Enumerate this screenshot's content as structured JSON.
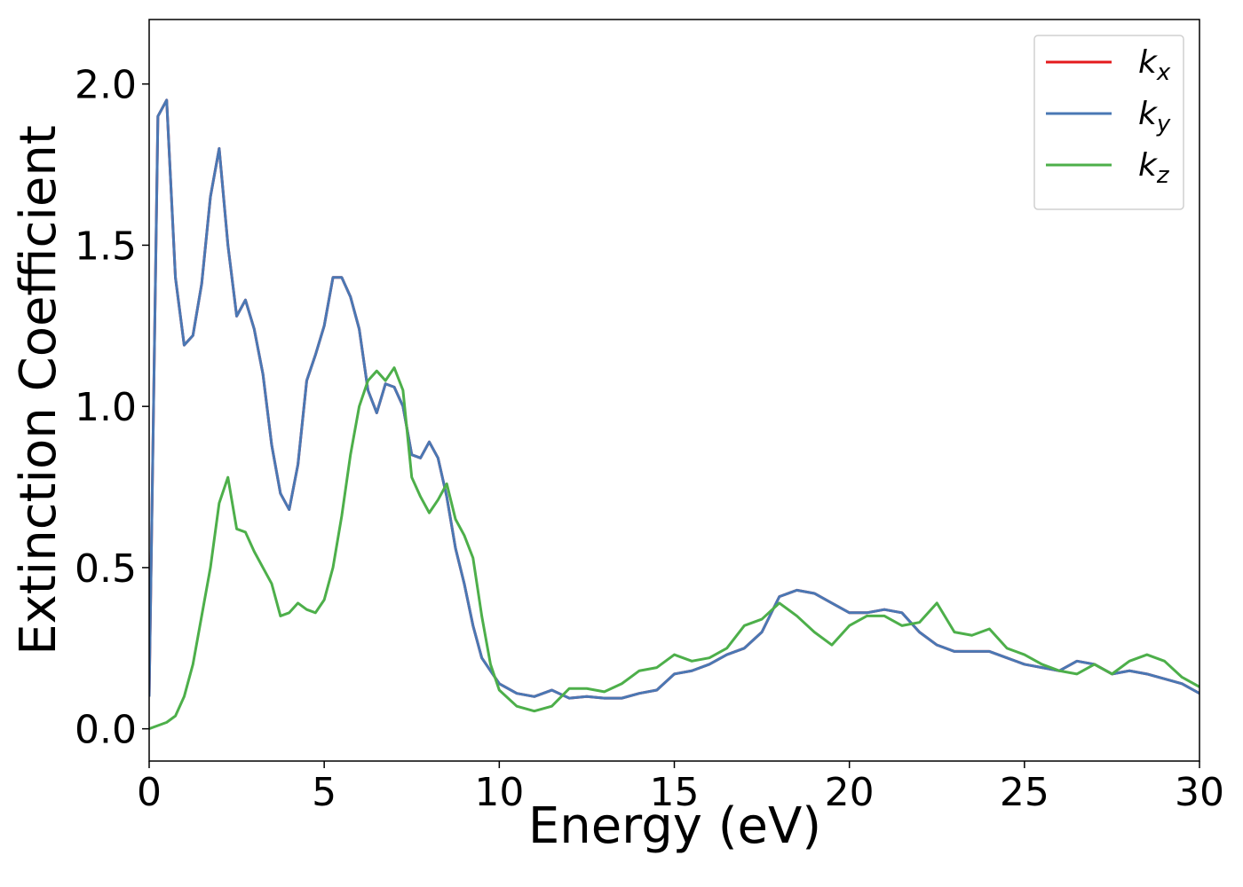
{
  "chart_data": {
    "type": "line",
    "xlabel": "Energy (eV)",
    "ylabel": "Extinction Coefficient",
    "x": [
      0,
      0.25,
      0.5,
      0.75,
      1,
      1.25,
      1.5,
      1.75,
      2,
      2.25,
      2.5,
      2.75,
      3,
      3.25,
      3.5,
      3.75,
      4,
      4.25,
      4.5,
      4.75,
      5,
      5.25,
      5.5,
      5.75,
      6,
      6.25,
      6.5,
      6.75,
      7,
      7.25,
      7.5,
      7.75,
      8,
      8.25,
      8.5,
      8.75,
      9,
      9.25,
      9.5,
      9.75,
      10,
      10.5,
      11,
      11.5,
      12,
      12.5,
      13,
      13.5,
      14,
      14.5,
      15,
      15.5,
      16,
      16.5,
      17,
      17.5,
      18,
      18.5,
      19,
      19.5,
      20,
      20.5,
      21,
      21.5,
      22,
      22.5,
      23,
      23.5,
      24,
      24.5,
      25,
      25.5,
      26,
      26.5,
      27,
      27.5,
      28,
      28.5,
      29,
      29.5,
      30
    ],
    "series": [
      {
        "name": "kx",
        "color": "#e41a1c",
        "values": [
          0.1,
          1.9,
          1.95,
          1.4,
          1.19,
          1.22,
          1.38,
          1.65,
          1.8,
          1.5,
          1.28,
          1.33,
          1.24,
          1.1,
          0.88,
          0.73,
          0.68,
          0.82,
          1.08,
          1.16,
          1.25,
          1.4,
          1.4,
          1.34,
          1.24,
          1.05,
          0.98,
          1.07,
          1.06,
          1.0,
          0.85,
          0.84,
          0.89,
          0.84,
          0.72,
          0.56,
          0.45,
          0.32,
          0.22,
          0.18,
          0.14,
          0.11,
          0.1,
          0.12,
          0.095,
          0.1,
          0.095,
          0.095,
          0.11,
          0.12,
          0.17,
          0.18,
          0.2,
          0.23,
          0.25,
          0.3,
          0.41,
          0.43,
          0.42,
          0.39,
          0.36,
          0.36,
          0.37,
          0.36,
          0.3,
          0.26,
          0.24,
          0.24,
          0.24,
          0.22,
          0.2,
          0.19,
          0.18,
          0.21,
          0.2,
          0.17,
          0.18,
          0.17,
          0.155,
          0.14,
          0.11
        ]
      },
      {
        "name": "ky",
        "color": "#4a78b4",
        "values": [
          0.1,
          1.9,
          1.95,
          1.4,
          1.19,
          1.22,
          1.38,
          1.65,
          1.8,
          1.5,
          1.28,
          1.33,
          1.24,
          1.1,
          0.88,
          0.73,
          0.68,
          0.82,
          1.08,
          1.16,
          1.25,
          1.4,
          1.4,
          1.34,
          1.24,
          1.05,
          0.98,
          1.07,
          1.06,
          1.0,
          0.85,
          0.84,
          0.89,
          0.84,
          0.72,
          0.56,
          0.45,
          0.32,
          0.22,
          0.18,
          0.14,
          0.11,
          0.1,
          0.12,
          0.095,
          0.1,
          0.095,
          0.095,
          0.11,
          0.12,
          0.17,
          0.18,
          0.2,
          0.23,
          0.25,
          0.3,
          0.41,
          0.43,
          0.42,
          0.39,
          0.36,
          0.36,
          0.37,
          0.36,
          0.3,
          0.26,
          0.24,
          0.24,
          0.24,
          0.22,
          0.2,
          0.19,
          0.18,
          0.21,
          0.2,
          0.17,
          0.18,
          0.17,
          0.155,
          0.14,
          0.11
        ]
      },
      {
        "name": "kz",
        "color": "#4daf4a",
        "values": [
          0.0,
          0.01,
          0.02,
          0.04,
          0.1,
          0.2,
          0.35,
          0.5,
          0.7,
          0.78,
          0.62,
          0.61,
          0.55,
          0.5,
          0.45,
          0.35,
          0.36,
          0.39,
          0.37,
          0.36,
          0.4,
          0.5,
          0.66,
          0.85,
          1.0,
          1.08,
          1.11,
          1.08,
          1.12,
          1.05,
          0.78,
          0.72,
          0.67,
          0.71,
          0.76,
          0.65,
          0.6,
          0.53,
          0.35,
          0.2,
          0.12,
          0.07,
          0.055,
          0.07,
          0.125,
          0.125,
          0.115,
          0.14,
          0.18,
          0.19,
          0.23,
          0.21,
          0.22,
          0.25,
          0.32,
          0.34,
          0.39,
          0.35,
          0.3,
          0.26,
          0.32,
          0.35,
          0.35,
          0.32,
          0.33,
          0.39,
          0.3,
          0.29,
          0.31,
          0.25,
          0.23,
          0.2,
          0.18,
          0.17,
          0.2,
          0.17,
          0.21,
          0.23,
          0.21,
          0.16,
          0.13
        ]
      }
    ],
    "xlim": [
      0,
      30
    ],
    "ylim": [
      -0.1,
      2.2
    ],
    "xticks": [
      0,
      5,
      10,
      15,
      20,
      25,
      30
    ],
    "yticks": [
      {
        "value": 0,
        "label": "0.0"
      },
      {
        "value": 0.5,
        "label": "0.5"
      },
      {
        "value": 1,
        "label": "1.0"
      },
      {
        "value": 1.5,
        "label": "1.5"
      },
      {
        "value": 2,
        "label": "2.0"
      }
    ],
    "legend": "upper right"
  }
}
